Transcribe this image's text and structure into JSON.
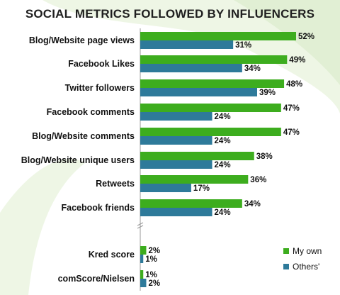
{
  "colors": {
    "my_own": "#3dad1e",
    "others": "#2e7a9a",
    "swirl": "#d7e8c8"
  },
  "chart_data": {
    "type": "bar",
    "orientation": "horizontal",
    "title": "SOCIAL METRICS FOLLOWED BY INFLUENCERS",
    "categories": [
      "Blog/Website page views",
      "Facebook Likes",
      "Twitter followers",
      "Facebook comments",
      "Blog/Website comments",
      "Blog/Website unique users",
      "Retweets",
      "Facebook friends",
      "Kred score",
      "comScore/Nielsen"
    ],
    "series": [
      {
        "name": "My own",
        "values": [
          52,
          49,
          48,
          47,
          47,
          38,
          36,
          34,
          2,
          1
        ]
      },
      {
        "name": "Others'",
        "values": [
          31,
          34,
          39,
          24,
          24,
          24,
          17,
          24,
          1,
          2
        ]
      }
    ],
    "value_suffix": "%",
    "xlim": [
      0,
      52
    ],
    "legend_position": "bottom-right",
    "grid": false
  }
}
